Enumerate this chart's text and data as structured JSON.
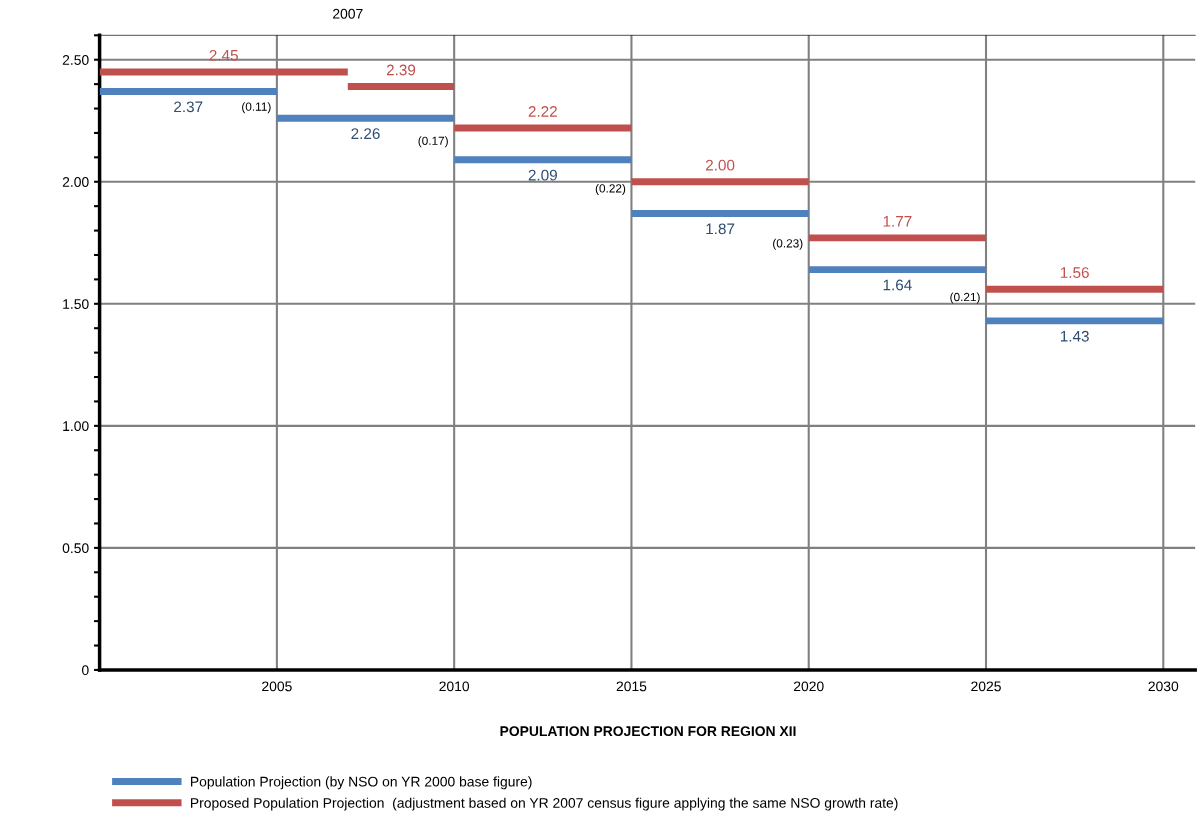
{
  "chart_data": {
    "type": "line",
    "title": "POPULATION PROJECTION FOR REGION XII",
    "series": [
      {
        "name": "Population Projection (by NSO on YR 2000 base figure)",
        "color": "#4f81bd",
        "x": [
          2000,
          2002.5,
          2005
        ],
        "values": [
          2.37,
          2.37,
          2.37
        ],
        "value_labels": [
          null,
          "2.37",
          null
        ]
      },
      {
        "color": "#4f81bd",
        "x": [
          2005,
          2007.5,
          2010
        ],
        "values": [
          2.26,
          2.26,
          2.26
        ],
        "value_labels": [
          null,
          "2.26",
          null
        ]
      },
      {
        "color": "#4f81bd",
        "x": [
          2010,
          2012.5,
          2015
        ],
        "values": [
          2.09,
          2.09,
          2.09
        ],
        "value_labels": [
          null,
          "2.09",
          null
        ]
      },
      {
        "color": "#4f81bd",
        "x": [
          2015,
          2017.5,
          2020
        ],
        "values": [
          1.87,
          1.87,
          1.87
        ],
        "value_labels": [
          null,
          "1.87",
          null
        ]
      },
      {
        "color": "#4f81bd",
        "x": [
          2020,
          2022.5,
          2025
        ],
        "values": [
          1.64,
          1.64,
          1.64
        ],
        "value_labels": [
          null,
          "1.64",
          null
        ]
      },
      {
        "color": "#4f81bd",
        "x": [
          2025,
          2027.5,
          2030
        ],
        "values": [
          1.43,
          1.43,
          1.43
        ],
        "value_labels": [
          null,
          "1.43",
          null
        ]
      },
      {
        "name": "Proposed Population Projection  (adjustment based on YR 2007 census figure applying the same NSO growth rate)",
        "color": "#c0504d",
        "x": [
          2000,
          2003.5,
          2007
        ],
        "values": [
          2.45,
          2.45,
          2.45
        ],
        "value_labels": [
          null,
          "2.45",
          null
        ]
      },
      {
        "color": "#c0504d",
        "x": [
          2007,
          2008.5,
          2010
        ],
        "values": [
          2.39,
          2.39,
          2.39
        ],
        "value_labels": [
          null,
          "2.39",
          null
        ]
      },
      {
        "color": "#c0504d",
        "x": [
          2010,
          2012.5,
          2015
        ],
        "values": [
          2.22,
          2.22,
          2.22
        ],
        "value_labels": [
          null,
          "2.22",
          null
        ]
      },
      {
        "color": "#c0504d",
        "x": [
          2015,
          2017.5,
          2020
        ],
        "values": [
          2.0,
          2.0,
          2.0
        ],
        "value_labels": [
          null,
          "2.00",
          null
        ]
      },
      {
        "color": "#c0504d",
        "x": [
          2020,
          2022.5,
          2025
        ],
        "values": [
          1.77,
          1.77,
          1.77
        ],
        "value_labels": [
          null,
          "1.77",
          null
        ]
      },
      {
        "color": "#c0504d",
        "x": [
          2025,
          2027.5,
          2030
        ],
        "values": [
          1.56,
          1.56,
          1.56
        ],
        "value_labels": [
          null,
          "1.56",
          null
        ]
      }
    ],
    "annotations": [
      "2007",
      "(0.11)",
      "(0.17)",
      "(0.22)",
      "(0.23)",
      "(0.21)"
    ],
    "xlim": [
      2000,
      2030.9
    ],
    "xticks": [
      2005,
      2010,
      2015,
      2020,
      2025,
      2030
    ],
    "ylim": [
      0,
      2.6
    ],
    "yticks": [
      {
        "value": 0,
        "label": "0"
      },
      {
        "value": 0.5,
        "label": "0.50"
      },
      {
        "value": 1.0,
        "label": "1.00"
      },
      {
        "value": 1.5,
        "label": "1.50"
      },
      {
        "value": 2.0,
        "label": "2.00"
      },
      {
        "value": 2.5,
        "label": "2.50"
      }
    ],
    "grid": true,
    "legend": "bottom",
    "marker": "none",
    "line_style": "solid"
  }
}
